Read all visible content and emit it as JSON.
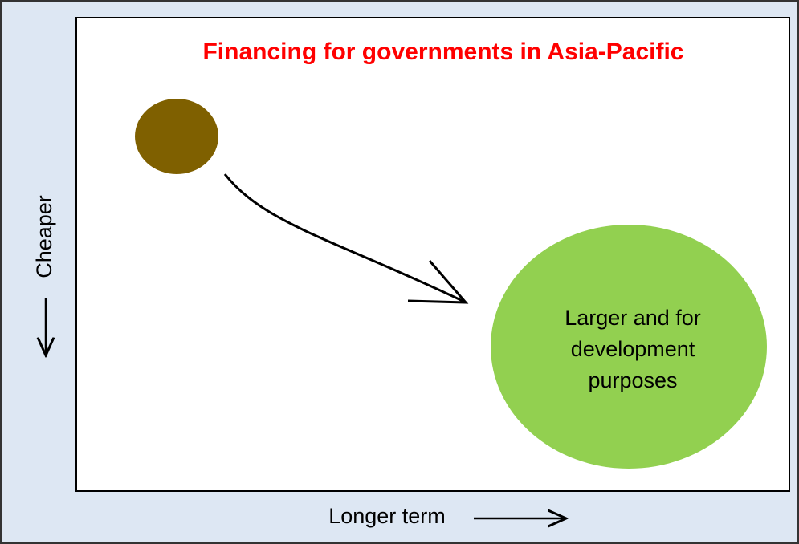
{
  "title": "Financing for governments in Asia-Pacific",
  "y_axis": {
    "label": "Cheaper"
  },
  "x_axis": {
    "label": "Longer term"
  },
  "nodes": [
    {
      "label_lines": [
        "Larger and for",
        "development",
        "purposes"
      ]
    }
  ]
}
